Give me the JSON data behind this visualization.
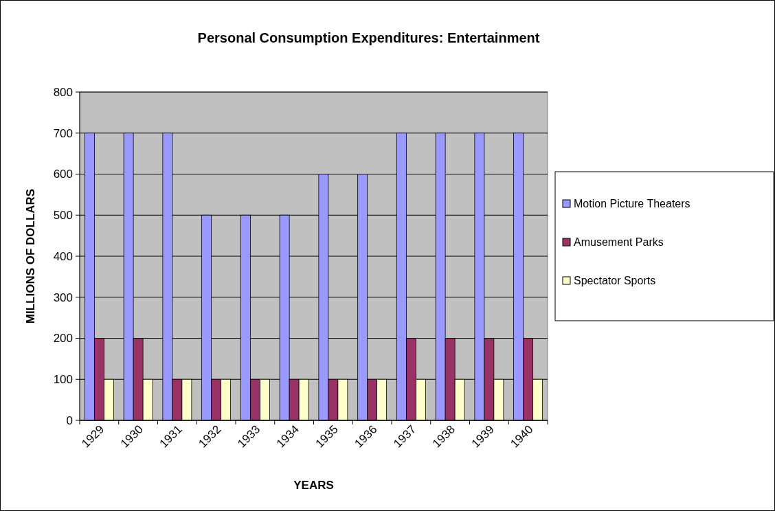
{
  "chart_data": {
    "type": "bar",
    "title": "Personal Consumption  Expenditures:  Entertainment",
    "xlabel": "YEARS",
    "ylabel": "MILLIONS OF DOLLARS",
    "categories": [
      "1929",
      "1930",
      "1931",
      "1932",
      "1933",
      "1934",
      "1935",
      "1936",
      "1937",
      "1938",
      "1939",
      "1940"
    ],
    "series": [
      {
        "name": "Motion Picture Theaters",
        "color": "#9999ff",
        "values": [
          700,
          700,
          700,
          500,
          500,
          500,
          600,
          600,
          700,
          700,
          700,
          700
        ]
      },
      {
        "name": "Amusement Parks",
        "color": "#993366",
        "values": [
          200,
          200,
          100,
          100,
          100,
          100,
          100,
          100,
          200,
          200,
          200,
          200
        ]
      },
      {
        "name": "Spectator Sports",
        "color": "#ffffcc",
        "values": [
          100,
          100,
          100,
          100,
          100,
          100,
          100,
          100,
          100,
          100,
          100,
          100
        ]
      }
    ],
    "ylim": [
      0,
      800
    ],
    "yticks": [
      0,
      100,
      200,
      300,
      400,
      500,
      600,
      700,
      800
    ],
    "grid": "y",
    "legend": "right"
  }
}
